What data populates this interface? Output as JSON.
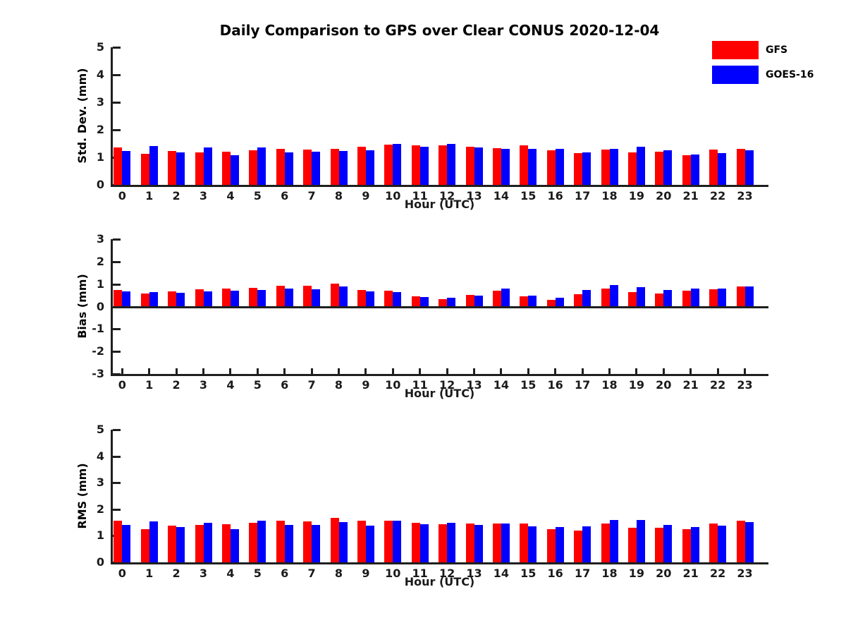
{
  "title": "Daily Comparison to GPS over Clear CONUS 2020-12-04",
  "colors": {
    "gfs": "#ff0000",
    "goes16": "#0000ff",
    "axis": "#1f1f1f",
    "text": "#000000"
  },
  "legend": {
    "items": [
      {
        "label": "GFS",
        "color": "#ff0000"
      },
      {
        "label": "GOES-16",
        "color": "#0000ff"
      }
    ]
  },
  "chart_data": [
    {
      "type": "bar",
      "title": "Daily Comparison to GPS over Clear CONUS 2020-12-04",
      "ylabel": "Std. Dev. (mm)",
      "xlabel": "Hour (UTC)",
      "ylim": [
        0,
        5
      ],
      "yticks": [
        0,
        1,
        2,
        3,
        4,
        5
      ],
      "grid": false,
      "legend_position": "top-right",
      "categories": [
        "0",
        "1",
        "2",
        "3",
        "4",
        "5",
        "6",
        "7",
        "8",
        "9",
        "10",
        "11",
        "12",
        "13",
        "14",
        "15",
        "16",
        "17",
        "18",
        "19",
        "20",
        "21",
        "22",
        "23"
      ],
      "series": [
        {
          "name": "GFS",
          "color": "#ff0000",
          "values": [
            1.35,
            1.14,
            1.22,
            1.18,
            1.2,
            1.25,
            1.31,
            1.29,
            1.32,
            1.39,
            1.45,
            1.44,
            1.43,
            1.39,
            1.33,
            1.44,
            1.25,
            1.15,
            1.27,
            1.17,
            1.21,
            1.07,
            1.27,
            1.32
          ]
        },
        {
          "name": "GOES-16",
          "color": "#0000ff",
          "values": [
            1.22,
            1.4,
            1.17,
            1.35,
            1.08,
            1.37,
            1.19,
            1.2,
            1.24,
            1.25,
            1.49,
            1.39,
            1.49,
            1.37,
            1.3,
            1.3,
            1.31,
            1.18,
            1.31,
            1.38,
            1.26,
            1.11,
            1.15,
            1.25
          ]
        }
      ]
    },
    {
      "type": "bar",
      "title": "",
      "ylabel": "Bias (mm)",
      "xlabel": "Hour (UTC)",
      "ylim": [
        -3,
        3
      ],
      "yticks": [
        -3,
        -2,
        -1,
        0,
        1,
        2,
        3
      ],
      "grid": false,
      "categories": [
        "0",
        "1",
        "2",
        "3",
        "4",
        "5",
        "6",
        "7",
        "8",
        "9",
        "10",
        "11",
        "12",
        "13",
        "14",
        "15",
        "16",
        "17",
        "18",
        "19",
        "20",
        "21",
        "22",
        "23"
      ],
      "series": [
        {
          "name": "GFS",
          "color": "#ff0000",
          "values": [
            0.74,
            0.58,
            0.66,
            0.78,
            0.81,
            0.82,
            0.93,
            0.94,
            1.02,
            0.74,
            0.7,
            0.46,
            0.33,
            0.51,
            0.71,
            0.44,
            0.3,
            0.54,
            0.81,
            0.65,
            0.57,
            0.71,
            0.77,
            0.9
          ]
        },
        {
          "name": "GOES-16",
          "color": "#0000ff",
          "values": [
            0.69,
            0.65,
            0.61,
            0.69,
            0.7,
            0.74,
            0.79,
            0.77,
            0.88,
            0.66,
            0.65,
            0.43,
            0.39,
            0.5,
            0.79,
            0.5,
            0.39,
            0.73,
            0.96,
            0.86,
            0.73,
            0.81,
            0.81,
            0.91
          ]
        }
      ]
    },
    {
      "type": "bar",
      "title": "",
      "ylabel": "RMS (mm)",
      "xlabel": "Hour (UTC)",
      "ylim": [
        0,
        5
      ],
      "yticks": [
        0,
        1,
        2,
        3,
        4,
        5
      ],
      "grid": false,
      "categories": [
        "0",
        "1",
        "2",
        "3",
        "4",
        "5",
        "6",
        "7",
        "8",
        "9",
        "10",
        "11",
        "12",
        "13",
        "14",
        "15",
        "16",
        "17",
        "18",
        "19",
        "20",
        "21",
        "22",
        "23"
      ],
      "series": [
        {
          "name": "GFS",
          "color": "#ff0000",
          "values": [
            1.56,
            1.26,
            1.38,
            1.42,
            1.44,
            1.48,
            1.58,
            1.55,
            1.67,
            1.56,
            1.57,
            1.5,
            1.43,
            1.46,
            1.47,
            1.46,
            1.24,
            1.21,
            1.45,
            1.29,
            1.3,
            1.24,
            1.46,
            1.56
          ]
        },
        {
          "name": "GOES-16",
          "color": "#0000ff",
          "values": [
            1.41,
            1.53,
            1.33,
            1.49,
            1.26,
            1.56,
            1.42,
            1.42,
            1.52,
            1.38,
            1.56,
            1.44,
            1.49,
            1.42,
            1.47,
            1.36,
            1.32,
            1.36,
            1.6,
            1.6,
            1.42,
            1.32,
            1.38,
            1.51
          ]
        }
      ]
    }
  ]
}
